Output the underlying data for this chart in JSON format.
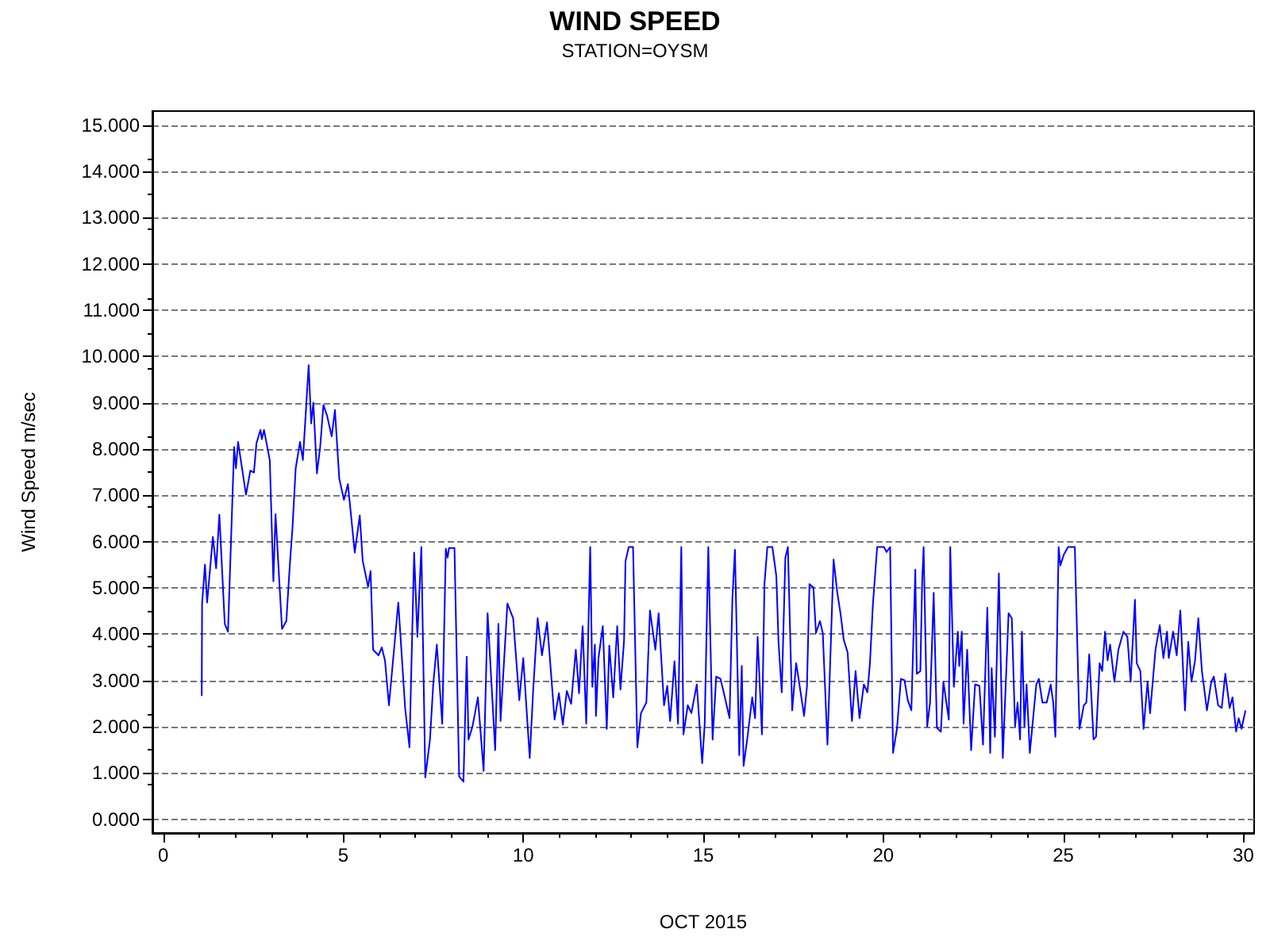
{
  "chart_data": {
    "type": "line",
    "title": "WIND SPEED",
    "subtitle": "STATION=OYSM",
    "xlabel": "OCT 2015",
    "ylabel": "Wind Speed m/sec",
    "color": "#0000ff",
    "grid": "y",
    "marker": "none",
    "xlim": [
      -0.3,
      30.3
    ],
    "xticks": [
      0,
      5,
      10,
      15,
      20,
      25,
      30
    ],
    "ylim": [
      -0.3,
      15.3
    ],
    "yticks": [
      {
        "value": 0,
        "label": "0.000"
      },
      {
        "value": 1,
        "label": "1.000"
      },
      {
        "value": 2,
        "label": "2.000"
      },
      {
        "value": 3,
        "label": "3.000"
      },
      {
        "value": 4,
        "label": "4.000"
      },
      {
        "value": 5,
        "label": "5.000"
      },
      {
        "value": 6,
        "label": "6.000"
      },
      {
        "value": 7,
        "label": "7.000"
      },
      {
        "value": 8,
        "label": "8.000"
      },
      {
        "value": 9,
        "label": "9.000"
      },
      {
        "value": 10,
        "label": "10.000"
      },
      {
        "value": 11,
        "label": "11.000"
      },
      {
        "value": 12,
        "label": "12.000"
      },
      {
        "value": 13,
        "label": "13.000"
      },
      {
        "value": 14,
        "label": "14.000"
      },
      {
        "value": 15,
        "label": "15.000"
      }
    ],
    "x": [
      1.07,
      1.08,
      1.16,
      1.22,
      1.38,
      1.47,
      1.56,
      1.71,
      1.8,
      1.97,
      2.02,
      2.08,
      2.3,
      2.42,
      2.52,
      2.59,
      2.7,
      2.74,
      2.8,
      2.96,
      3.06,
      3.12,
      3.3,
      3.42,
      3.52,
      3.59,
      3.68,
      3.8,
      3.88,
      3.96,
      4.04,
      4.11,
      4.17,
      4.27,
      4.36,
      4.45,
      4.55,
      4.68,
      4.77,
      4.89,
      5.02,
      5.13,
      5.32,
      5.46,
      5.54,
      5.69,
      5.76,
      5.83,
      5.98,
      6.07,
      6.16,
      6.27,
      6.53,
      6.72,
      6.84,
      6.97,
      7.06,
      7.17,
      7.28,
      7.41,
      7.5,
      7.6,
      7.75,
      7.85,
      7.9,
      7.94,
      8.09,
      8.22,
      8.34,
      8.43,
      8.48,
      8.59,
      8.74,
      8.9,
      9.01,
      9.22,
      9.31,
      9.37,
      9.56,
      9.72,
      9.89,
      10.0,
      10.18,
      10.28,
      10.4,
      10.52,
      10.66,
      10.72,
      10.87,
      10.99,
      11.1,
      11.21,
      11.33,
      11.46,
      11.55,
      11.65,
      11.75,
      11.86,
      11.92,
      11.99,
      12.02,
      12.09,
      12.21,
      12.32,
      12.39,
      12.5,
      12.61,
      12.7,
      12.8,
      12.84,
      12.93,
      13.05,
      13.17,
      13.27,
      13.42,
      13.52,
      13.67,
      13.76,
      13.91,
      14.0,
      14.08,
      14.2,
      14.3,
      14.39,
      14.45,
      14.57,
      14.67,
      14.82,
      14.97,
      15.04,
      15.14,
      15.26,
      15.36,
      15.48,
      15.6,
      15.73,
      15.81,
      15.88,
      16.0,
      16.07,
      16.12,
      16.22,
      16.36,
      16.44,
      16.51,
      16.63,
      16.7,
      16.78,
      16.92,
      17.03,
      17.09,
      17.18,
      17.28,
      17.35,
      17.47,
      17.58,
      17.66,
      17.8,
      17.88,
      17.95,
      18.06,
      18.13,
      18.24,
      18.32,
      18.45,
      18.62,
      18.72,
      18.82,
      18.9,
      19.01,
      19.13,
      19.23,
      19.34,
      19.46,
      19.56,
      19.63,
      19.71,
      19.83,
      20.02,
      20.09,
      20.19,
      20.27,
      20.38,
      20.49,
      20.59,
      20.68,
      20.78,
      20.89,
      20.93,
      21.03,
      21.08,
      21.12,
      21.22,
      21.3,
      21.4,
      21.49,
      21.6,
      21.67,
      21.82,
      21.86,
      21.96,
      22.07,
      22.11,
      22.18,
      22.23,
      22.33,
      22.44,
      22.55,
      22.67,
      22.77,
      22.89,
      22.97,
      23.01,
      23.1,
      23.21,
      23.32,
      23.48,
      23.57,
      23.66,
      23.73,
      23.8,
      23.85,
      23.92,
      23.98,
      24.07,
      24.25,
      24.32,
      24.42,
      24.54,
      24.65,
      24.72,
      24.78,
      24.87,
      24.92,
      25.01,
      25.13,
      25.32,
      25.45,
      25.57,
      25.64,
      25.72,
      25.84,
      25.91,
      26.01,
      26.08,
      26.16,
      26.23,
      26.3,
      26.42,
      26.53,
      26.67,
      26.78,
      26.87,
      26.99,
      27.04,
      27.14,
      27.23,
      27.34,
      27.41,
      27.56,
      27.68,
      27.78,
      27.88,
      27.93,
      28.05,
      28.15,
      28.25,
      28.38,
      28.47,
      28.56,
      28.66,
      28.75,
      28.85,
      28.99,
      29.11,
      29.18,
      29.3,
      29.4,
      29.5,
      29.62,
      29.7,
      29.8,
      29.87,
      29.95,
      30.06
    ],
    "values": [
      2.66,
      4.65,
      5.5,
      4.68,
      6.1,
      5.42,
      6.58,
      4.22,
      4.05,
      8.04,
      7.58,
      8.15,
      7.01,
      7.53,
      7.49,
      8.12,
      8.41,
      8.21,
      8.41,
      7.76,
      5.14,
      6.59,
      4.11,
      4.28,
      5.53,
      6.28,
      7.58,
      8.15,
      7.76,
      8.78,
      9.81,
      8.55,
      9.0,
      7.47,
      8.04,
      8.95,
      8.72,
      8.27,
      8.84,
      7.36,
      6.9,
      7.24,
      5.76,
      6.56,
      5.59,
      5.02,
      5.36,
      3.66,
      3.54,
      3.71,
      3.43,
      2.46,
      4.68,
      2.4,
      1.55,
      5.76,
      3.94,
      5.88,
      0.9,
      1.72,
      2.91,
      3.77,
      2.06,
      5.84,
      5.65,
      5.86,
      5.86,
      0.92,
      0.81,
      3.51,
      1.72,
      2.0,
      2.63,
      1.04,
      4.45,
      1.49,
      4.22,
      2.12,
      4.66,
      4.34,
      2.57,
      3.48,
      1.32,
      2.84,
      4.34,
      3.54,
      4.25,
      3.68,
      2.15,
      2.72,
      2.04,
      2.77,
      2.49,
      3.66,
      2.72,
      4.17,
      2.06,
      5.88,
      2.86,
      3.77,
      2.23,
      3.48,
      4.17,
      1.95,
      3.75,
      2.63,
      4.17,
      2.8,
      3.86,
      5.57,
      5.88,
      5.88,
      1.55,
      2.29,
      2.52,
      4.51,
      3.66,
      4.45,
      2.46,
      2.88,
      2.12,
      3.41,
      2.06,
      5.88,
      1.83,
      2.46,
      2.29,
      2.91,
      1.21,
      2.06,
      5.88,
      1.72,
      3.08,
      3.03,
      2.63,
      2.18,
      4.79,
      5.82,
      1.38,
      3.31,
      1.15,
      1.72,
      2.63,
      2.18,
      3.94,
      1.83,
      5.08,
      5.88,
      5.88,
      5.25,
      3.83,
      2.74,
      5.65,
      5.88,
      2.35,
      3.37,
      2.97,
      2.23,
      2.86,
      5.08,
      5.0,
      4.02,
      4.28,
      4.02,
      1.61,
      5.61,
      4.91,
      4.4,
      3.88,
      3.6,
      2.12,
      3.2,
      2.18,
      2.91,
      2.74,
      3.37,
      4.62,
      5.88,
      5.88,
      5.77,
      5.88,
      1.43,
      1.95,
      3.03,
      3.0,
      2.57,
      2.35,
      5.39,
      3.14,
      3.2,
      5.14,
      5.88,
      2.0,
      2.52,
      4.89,
      1.97,
      1.89,
      2.97,
      2.15,
      5.88,
      2.86,
      4.05,
      3.31,
      4.05,
      2.06,
      3.66,
      1.49,
      2.91,
      2.88,
      1.61,
      4.57,
      1.43,
      3.26,
      1.78,
      5.31,
      1.32,
      4.45,
      4.34,
      2.0,
      2.52,
      1.72,
      4.05,
      2.0,
      2.91,
      1.43,
      2.91,
      3.03,
      2.52,
      2.52,
      2.91,
      2.52,
      1.78,
      5.88,
      5.48,
      5.71,
      5.88,
      5.88,
      1.95,
      2.46,
      2.52,
      3.56,
      1.72,
      1.78,
      3.37,
      3.2,
      4.05,
      3.43,
      3.77,
      2.97,
      3.66,
      4.05,
      3.94,
      2.97,
      4.74,
      3.37,
      3.2,
      1.95,
      2.97,
      2.29,
      3.66,
      4.19,
      3.48,
      4.05,
      3.48,
      4.05,
      3.54,
      4.51,
      2.35,
      3.83,
      2.97,
      3.43,
      4.34,
      3.2,
      2.35,
      2.97,
      3.08,
      2.46,
      2.4,
      3.14,
      2.4,
      2.63,
      1.89,
      2.18,
      1.95,
      2.35
    ]
  }
}
